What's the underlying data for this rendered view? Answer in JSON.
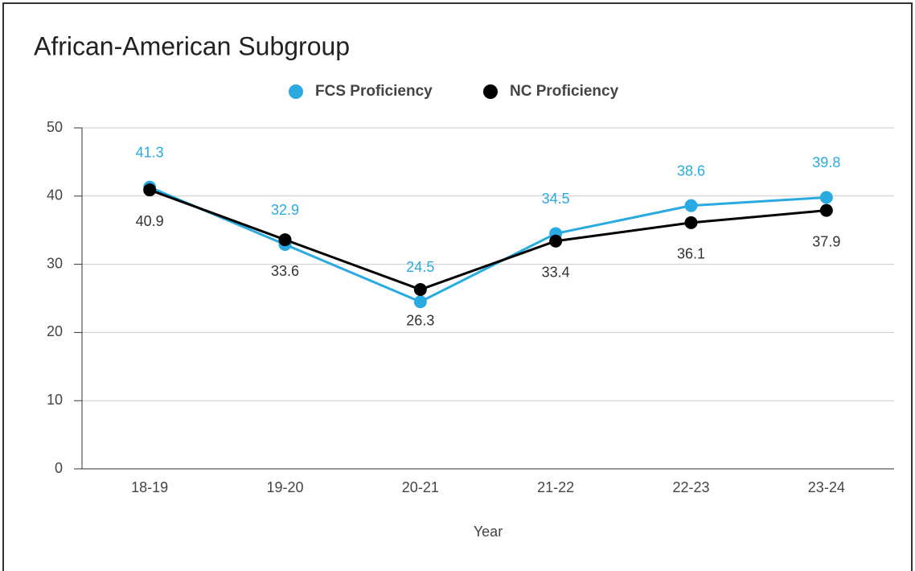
{
  "chart_data": {
    "type": "line",
    "title": "African-American Subgroup",
    "x_label": "Year",
    "categories": [
      "18-19",
      "19-20",
      "20-21",
      "21-22",
      "22-23",
      "23-24"
    ],
    "series": [
      {
        "name": "FCS Proficiency",
        "color": "#29abe2",
        "values": [
          41.3,
          32.9,
          24.5,
          34.5,
          38.6,
          39.8
        ]
      },
      {
        "name": "NC Proficiency",
        "color": "#000000",
        "values": [
          40.9,
          33.6,
          26.3,
          33.4,
          36.1,
          37.9
        ]
      }
    ],
    "ylim": [
      0,
      50
    ],
    "yticks": [
      0,
      10,
      20,
      30,
      40,
      50
    ],
    "grid": true,
    "legend": "top"
  }
}
